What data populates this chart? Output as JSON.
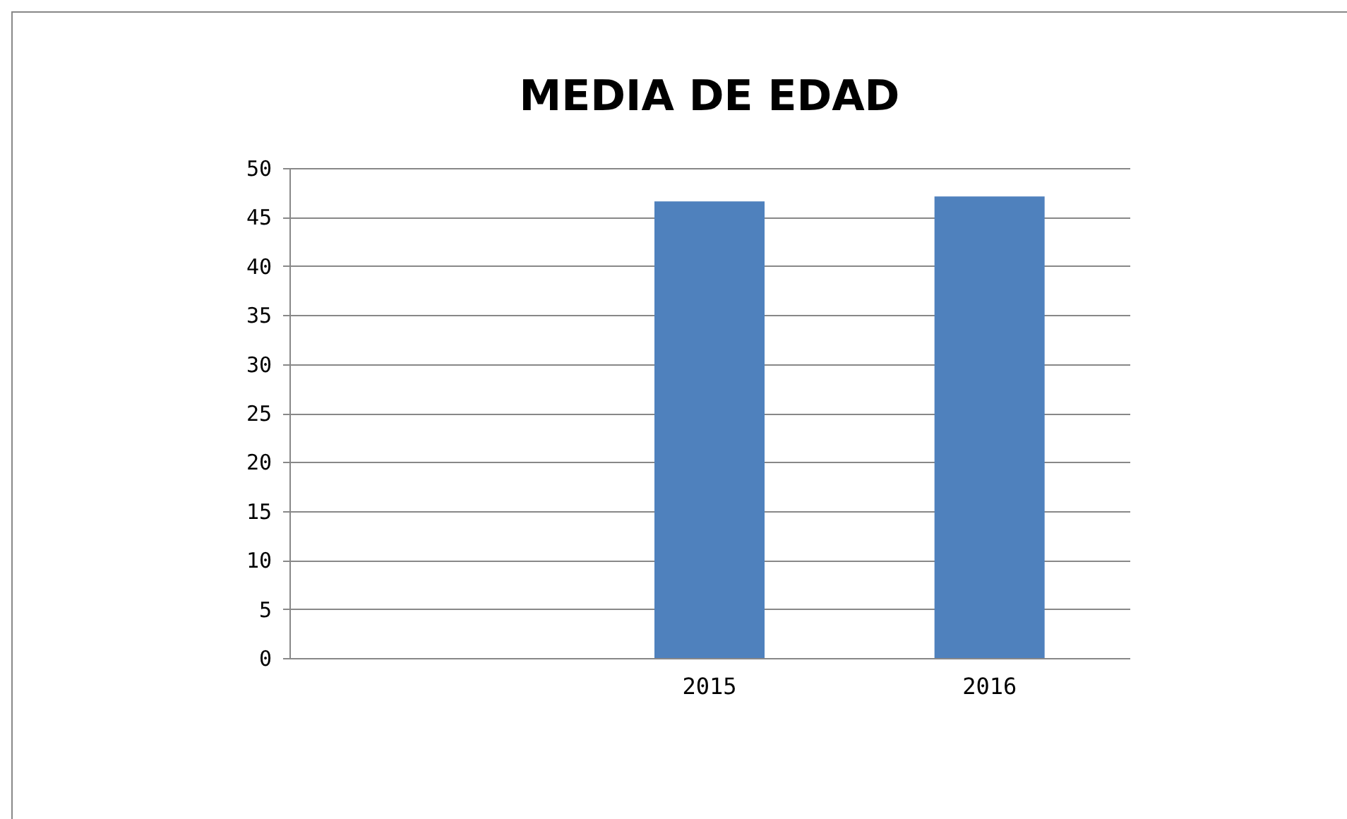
{
  "chart_data": {
    "type": "bar",
    "title": "MEDIA DE EDAD",
    "categories": [
      null,
      "2015",
      "2016"
    ],
    "series": [
      {
        "color": "#4f81bd",
        "values": [
          null,
          46.6,
          47.1
        ]
      }
    ],
    "ylim": [
      0,
      50
    ],
    "yticks": [
      0,
      5,
      10,
      15,
      20,
      25,
      30,
      35,
      40,
      45,
      50
    ],
    "grid": "y",
    "legend": false
  }
}
